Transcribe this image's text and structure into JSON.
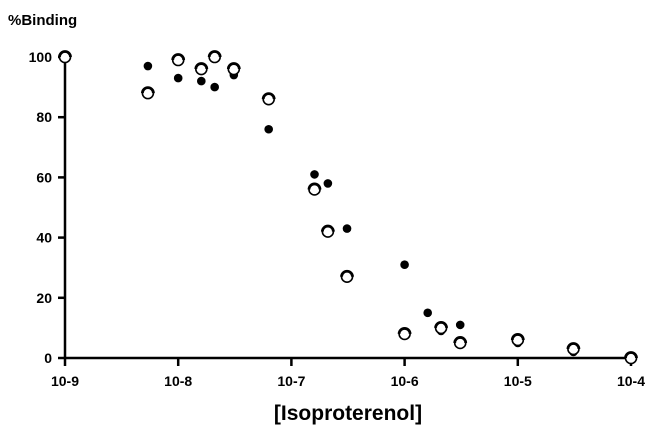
{
  "chart_data": {
    "type": "scatter",
    "title": "",
    "xlabel": "[Isoproterenol]",
    "ylabel": "%Binding",
    "x_scale": "log",
    "xlim": [
      1e-09,
      0.0001
    ],
    "ylim": [
      0,
      105
    ],
    "x_tick_values": [
      1e-09,
      1e-08,
      1e-07,
      1e-06,
      1e-05,
      0.0001
    ],
    "x_tick_labels": [
      "10-9",
      "10-8",
      "10-7",
      "10-6",
      "10-5",
      "10-4"
    ],
    "y_tick_values": [
      0,
      20,
      40,
      60,
      80,
      100
    ],
    "y_tick_labels": [
      "0",
      "20",
      "40",
      "60",
      "80",
      "100"
    ],
    "grid": false,
    "legend": "none",
    "series": [
      {
        "marker": "filled-circle",
        "color": "#000000",
        "points": [
          {
            "x": 1e-09,
            "y": 100
          },
          {
            "x": 5.4e-09,
            "y": 97
          },
          {
            "x": 1e-08,
            "y": 93
          },
          {
            "x": 1.6e-08,
            "y": 92
          },
          {
            "x": 2.1e-08,
            "y": 90
          },
          {
            "x": 3.1e-08,
            "y": 94
          },
          {
            "x": 6.3e-08,
            "y": 76
          },
          {
            "x": 1.6e-07,
            "y": 61
          },
          {
            "x": 2.1e-07,
            "y": 58
          },
          {
            "x": 3.1e-07,
            "y": 43
          },
          {
            "x": 1e-06,
            "y": 31
          },
          {
            "x": 1.6e-06,
            "y": 15
          },
          {
            "x": 2.1e-06,
            "y": 9
          },
          {
            "x": 3.1e-06,
            "y": 11
          },
          {
            "x": 1e-05,
            "y": 5
          },
          {
            "x": 3.1e-05,
            "y": 2
          },
          {
            "x": 0.0001,
            "y": 0
          }
        ]
      },
      {
        "marker": "open-circle",
        "color": "#000000",
        "points": [
          {
            "x": 1e-09,
            "y": 100
          },
          {
            "x": 5.4e-09,
            "y": 88
          },
          {
            "x": 1e-08,
            "y": 99
          },
          {
            "x": 1.6e-08,
            "y": 96
          },
          {
            "x": 2.1e-08,
            "y": 100
          },
          {
            "x": 3.1e-08,
            "y": 96
          },
          {
            "x": 6.3e-08,
            "y": 86
          },
          {
            "x": 1.6e-07,
            "y": 56
          },
          {
            "x": 2.1e-07,
            "y": 42
          },
          {
            "x": 3.1e-07,
            "y": 27
          },
          {
            "x": 1e-06,
            "y": 8
          },
          {
            "x": 2.1e-06,
            "y": 10
          },
          {
            "x": 3.1e-06,
            "y": 5
          },
          {
            "x": 1e-05,
            "y": 6
          },
          {
            "x": 3.1e-05,
            "y": 3
          },
          {
            "x": 0.0001,
            "y": 0
          }
        ]
      }
    ]
  }
}
